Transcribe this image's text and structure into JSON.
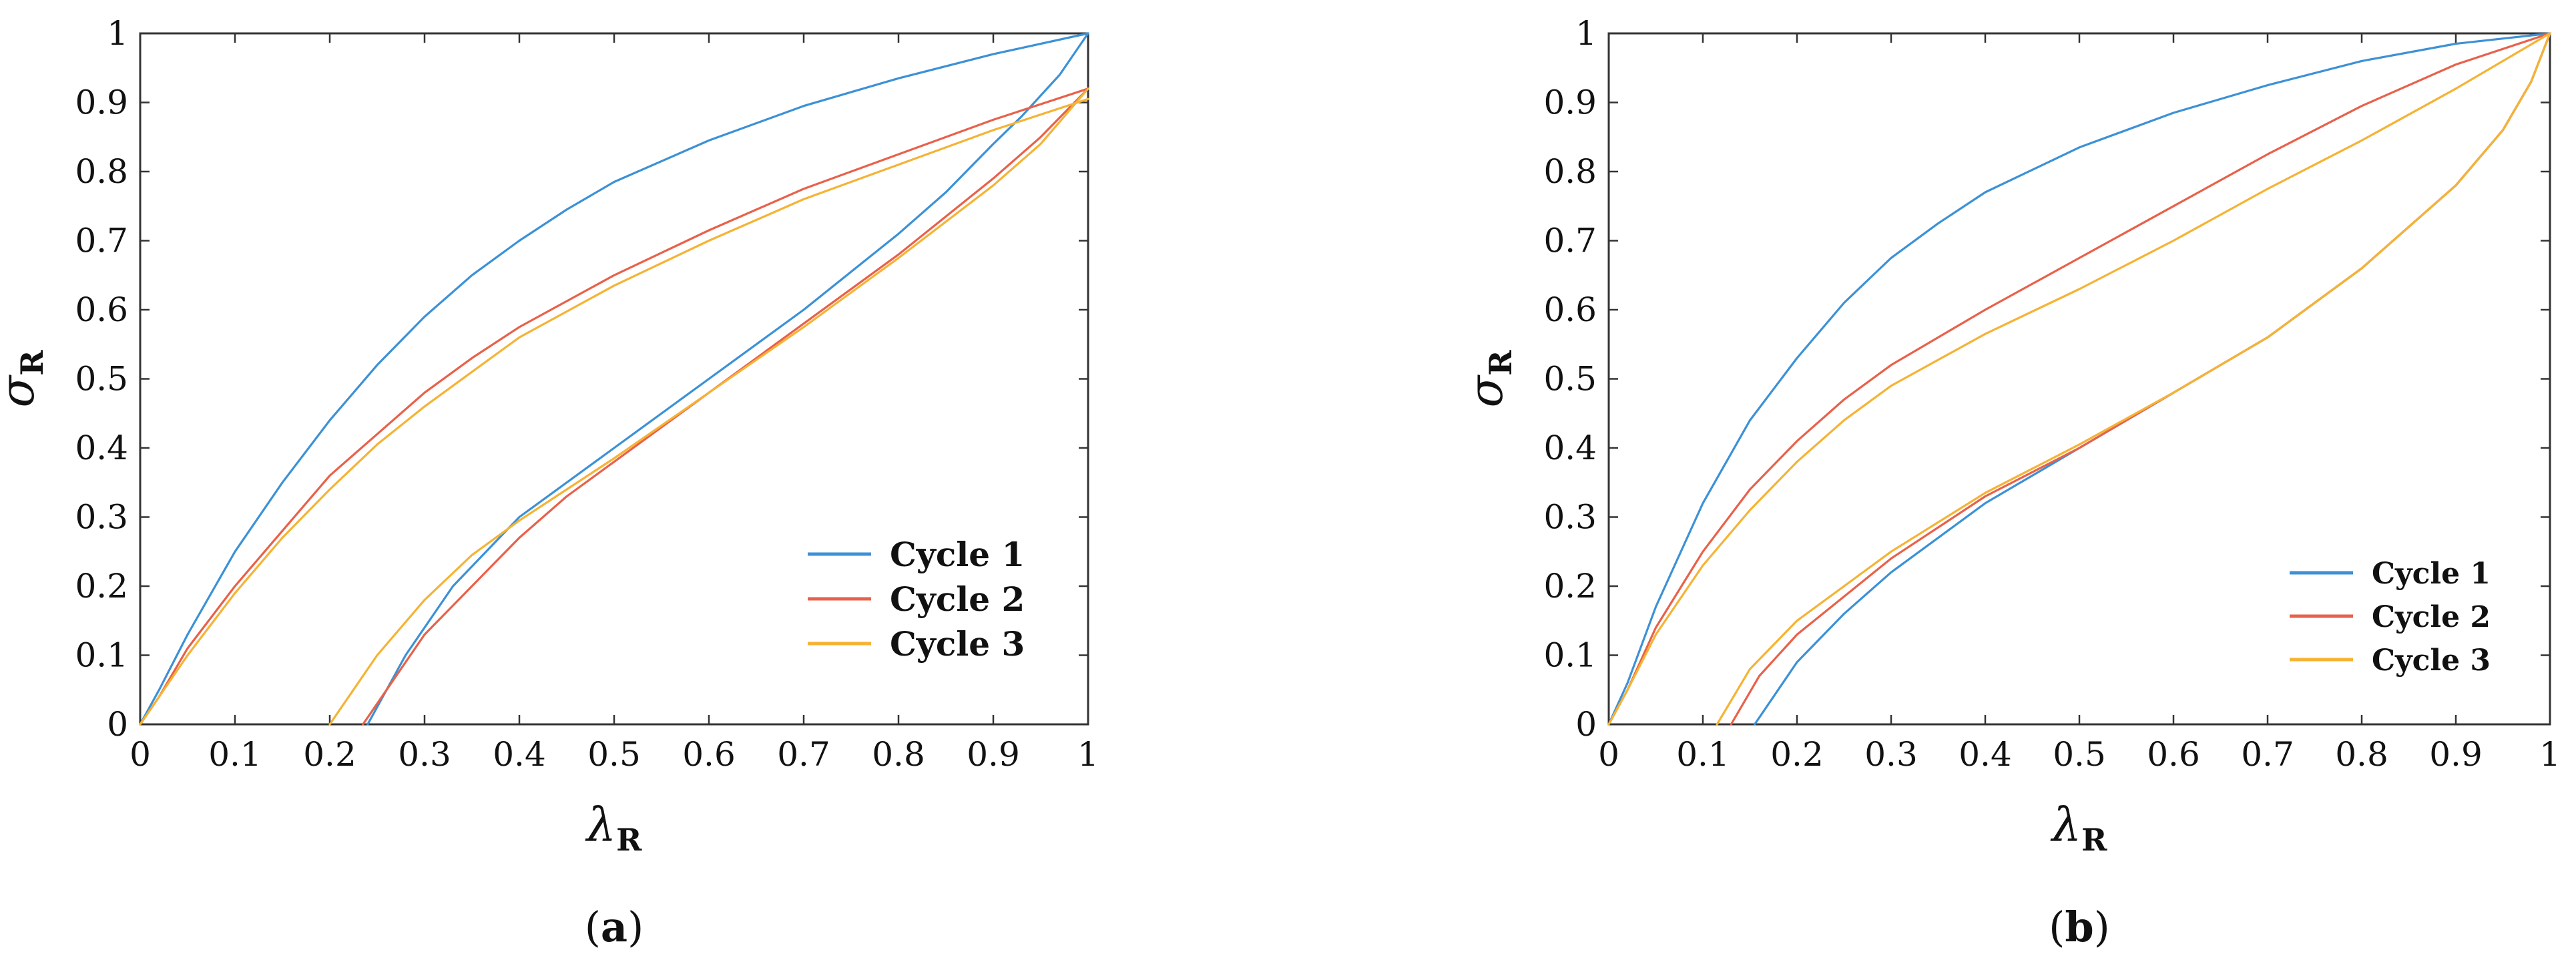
{
  "chart_data": [
    {
      "type": "line",
      "panel_label": "a",
      "xlabel": "λ",
      "xlabel_sub": "R",
      "ylabel": "σ",
      "ylabel_sub": "R",
      "xlim": [
        0,
        1
      ],
      "ylim": [
        0,
        1
      ],
      "x_ticks": [
        0,
        0.1,
        0.2,
        0.3,
        0.4,
        0.5,
        0.6,
        0.7,
        0.8,
        0.9,
        1
      ],
      "y_ticks": [
        0,
        0.1,
        0.2,
        0.3,
        0.4,
        0.5,
        0.6,
        0.7,
        0.8,
        0.9,
        1
      ],
      "x_tick_labels": [
        "0",
        "0.1",
        "0.2",
        "0.3",
        "0.4",
        "0.5",
        "0.6",
        "0.7",
        "0.8",
        "0.9",
        "1"
      ],
      "y_tick_labels": [
        "0",
        "0.1",
        "0.2",
        "0.3",
        "0.4",
        "0.5",
        "0.6",
        "0.7",
        "0.8",
        "0.9",
        "1"
      ],
      "grid": false,
      "legend_position": "bottom-right",
      "series": [
        {
          "name": "Cycle 1",
          "color": "#3c91d6",
          "loading": [
            [
              0,
              0
            ],
            [
              0.02,
              0.05
            ],
            [
              0.05,
              0.13
            ],
            [
              0.1,
              0.25
            ],
            [
              0.15,
              0.35
            ],
            [
              0.2,
              0.44
            ],
            [
              0.25,
              0.52
            ],
            [
              0.3,
              0.59
            ],
            [
              0.35,
              0.65
            ],
            [
              0.4,
              0.7
            ],
            [
              0.45,
              0.745
            ],
            [
              0.5,
              0.785
            ],
            [
              0.6,
              0.845
            ],
            [
              0.7,
              0.895
            ],
            [
              0.8,
              0.935
            ],
            [
              0.9,
              0.97
            ],
            [
              1,
              1
            ]
          ],
          "unloading": [
            [
              1,
              1
            ],
            [
              0.97,
              0.94
            ],
            [
              0.93,
              0.88
            ],
            [
              0.9,
              0.84
            ],
            [
              0.85,
              0.77
            ],
            [
              0.8,
              0.71
            ],
            [
              0.7,
              0.6
            ],
            [
              0.6,
              0.5
            ],
            [
              0.5,
              0.4
            ],
            [
              0.4,
              0.3
            ],
            [
              0.33,
              0.2
            ],
            [
              0.28,
              0.1
            ],
            [
              0.24,
              0
            ]
          ]
        },
        {
          "name": "Cycle 2",
          "color": "#e8614a",
          "loading": [
            [
              0,
              0
            ],
            [
              0.02,
              0.04
            ],
            [
              0.05,
              0.11
            ],
            [
              0.1,
              0.2
            ],
            [
              0.15,
              0.28
            ],
            [
              0.2,
              0.36
            ],
            [
              0.25,
              0.42
            ],
            [
              0.3,
              0.48
            ],
            [
              0.35,
              0.53
            ],
            [
              0.4,
              0.575
            ],
            [
              0.5,
              0.65
            ],
            [
              0.6,
              0.715
            ],
            [
              0.7,
              0.775
            ],
            [
              0.8,
              0.825
            ],
            [
              0.9,
              0.875
            ],
            [
              1,
              0.92
            ]
          ],
          "unloading": [
            [
              1,
              0.92
            ],
            [
              0.95,
              0.85
            ],
            [
              0.9,
              0.79
            ],
            [
              0.8,
              0.68
            ],
            [
              0.7,
              0.58
            ],
            [
              0.6,
              0.48
            ],
            [
              0.5,
              0.38
            ],
            [
              0.45,
              0.33
            ],
            [
              0.4,
              0.27
            ],
            [
              0.35,
              0.2
            ],
            [
              0.3,
              0.13
            ],
            [
              0.26,
              0.05
            ],
            [
              0.235,
              0
            ]
          ]
        },
        {
          "name": "Cycle 3",
          "color": "#f5b335",
          "loading": [
            [
              0,
              0
            ],
            [
              0.02,
              0.04
            ],
            [
              0.05,
              0.1
            ],
            [
              0.1,
              0.19
            ],
            [
              0.15,
              0.27
            ],
            [
              0.2,
              0.34
            ],
            [
              0.25,
              0.405
            ],
            [
              0.3,
              0.46
            ],
            [
              0.35,
              0.51
            ],
            [
              0.4,
              0.56
            ],
            [
              0.5,
              0.635
            ],
            [
              0.6,
              0.7
            ],
            [
              0.7,
              0.76
            ],
            [
              0.8,
              0.81
            ],
            [
              0.9,
              0.86
            ],
            [
              1,
              0.905
            ]
          ],
          "unloading": [
            [
              1,
              0.92
            ],
            [
              0.95,
              0.84
            ],
            [
              0.9,
              0.78
            ],
            [
              0.8,
              0.675
            ],
            [
              0.7,
              0.575
            ],
            [
              0.6,
              0.48
            ],
            [
              0.5,
              0.385
            ],
            [
              0.45,
              0.34
            ],
            [
              0.4,
              0.295
            ],
            [
              0.35,
              0.245
            ],
            [
              0.3,
              0.18
            ],
            [
              0.25,
              0.1
            ],
            [
              0.2,
              0
            ]
          ]
        }
      ]
    },
    {
      "type": "line",
      "panel_label": "b",
      "xlabel": "λ",
      "xlabel_sub": "R",
      "ylabel": "σ",
      "ylabel_sub": "R",
      "xlim": [
        0,
        1
      ],
      "ylim": [
        0,
        1
      ],
      "x_ticks": [
        0,
        0.1,
        0.2,
        0.3,
        0.4,
        0.5,
        0.6,
        0.7,
        0.8,
        0.9,
        1
      ],
      "y_ticks": [
        0,
        0.1,
        0.2,
        0.3,
        0.4,
        0.5,
        0.6,
        0.7,
        0.8,
        0.9,
        1
      ],
      "x_tick_labels": [
        "0",
        "0.1",
        "0.2",
        "0.3",
        "0.4",
        "0.5",
        "0.6",
        "0.7",
        "0.8",
        "0.9",
        "1"
      ],
      "y_tick_labels": [
        "0",
        "0.1",
        "0.2",
        "0.3",
        "0.4",
        "0.5",
        "0.6",
        "0.7",
        "0.8",
        "0.9",
        "1"
      ],
      "grid": false,
      "legend_position": "bottom-right",
      "series": [
        {
          "name": "Cycle 1",
          "color": "#3c91d6",
          "loading": [
            [
              0,
              0
            ],
            [
              0.02,
              0.06
            ],
            [
              0.05,
              0.17
            ],
            [
              0.1,
              0.32
            ],
            [
              0.15,
              0.44
            ],
            [
              0.2,
              0.53
            ],
            [
              0.25,
              0.61
            ],
            [
              0.3,
              0.675
            ],
            [
              0.35,
              0.725
            ],
            [
              0.4,
              0.77
            ],
            [
              0.5,
              0.835
            ],
            [
              0.6,
              0.885
            ],
            [
              0.7,
              0.925
            ],
            [
              0.8,
              0.96
            ],
            [
              0.9,
              0.985
            ],
            [
              1,
              1
            ]
          ],
          "unloading": [
            [
              1,
              1
            ],
            [
              0.98,
              0.93
            ],
            [
              0.95,
              0.86
            ],
            [
              0.9,
              0.78
            ],
            [
              0.8,
              0.66
            ],
            [
              0.7,
              0.56
            ],
            [
              0.6,
              0.48
            ],
            [
              0.5,
              0.4
            ],
            [
              0.4,
              0.32
            ],
            [
              0.3,
              0.22
            ],
            [
              0.25,
              0.16
            ],
            [
              0.2,
              0.09
            ],
            [
              0.155,
              0
            ]
          ]
        },
        {
          "name": "Cycle 2",
          "color": "#e8614a",
          "loading": [
            [
              0,
              0
            ],
            [
              0.02,
              0.05
            ],
            [
              0.05,
              0.14
            ],
            [
              0.1,
              0.25
            ],
            [
              0.15,
              0.34
            ],
            [
              0.2,
              0.41
            ],
            [
              0.25,
              0.47
            ],
            [
              0.3,
              0.52
            ],
            [
              0.4,
              0.6
            ],
            [
              0.5,
              0.675
            ],
            [
              0.6,
              0.75
            ],
            [
              0.7,
              0.825
            ],
            [
              0.8,
              0.895
            ],
            [
              0.9,
              0.955
            ],
            [
              1,
              1
            ]
          ],
          "unloading": [
            [
              1,
              1
            ],
            [
              0.98,
              0.93
            ],
            [
              0.95,
              0.86
            ],
            [
              0.9,
              0.78
            ],
            [
              0.8,
              0.66
            ],
            [
              0.7,
              0.56
            ],
            [
              0.6,
              0.48
            ],
            [
              0.5,
              0.4
            ],
            [
              0.4,
              0.33
            ],
            [
              0.3,
              0.24
            ],
            [
              0.2,
              0.13
            ],
            [
              0.16,
              0.07
            ],
            [
              0.13,
              0
            ]
          ]
        },
        {
          "name": "Cycle 3",
          "color": "#f5b335",
          "loading": [
            [
              0,
              0
            ],
            [
              0.02,
              0.05
            ],
            [
              0.05,
              0.13
            ],
            [
              0.1,
              0.23
            ],
            [
              0.15,
              0.31
            ],
            [
              0.2,
              0.38
            ],
            [
              0.25,
              0.44
            ],
            [
              0.3,
              0.49
            ],
            [
              0.4,
              0.565
            ],
            [
              0.5,
              0.63
            ],
            [
              0.6,
              0.7
            ],
            [
              0.7,
              0.775
            ],
            [
              0.8,
              0.845
            ],
            [
              0.9,
              0.92
            ],
            [
              1,
              1
            ]
          ],
          "unloading": [
            [
              1,
              1
            ],
            [
              0.98,
              0.93
            ],
            [
              0.95,
              0.86
            ],
            [
              0.9,
              0.78
            ],
            [
              0.8,
              0.66
            ],
            [
              0.7,
              0.56
            ],
            [
              0.6,
              0.48
            ],
            [
              0.5,
              0.405
            ],
            [
              0.4,
              0.335
            ],
            [
              0.3,
              0.25
            ],
            [
              0.2,
              0.15
            ],
            [
              0.15,
              0.08
            ],
            [
              0.115,
              0
            ]
          ]
        }
      ]
    }
  ]
}
